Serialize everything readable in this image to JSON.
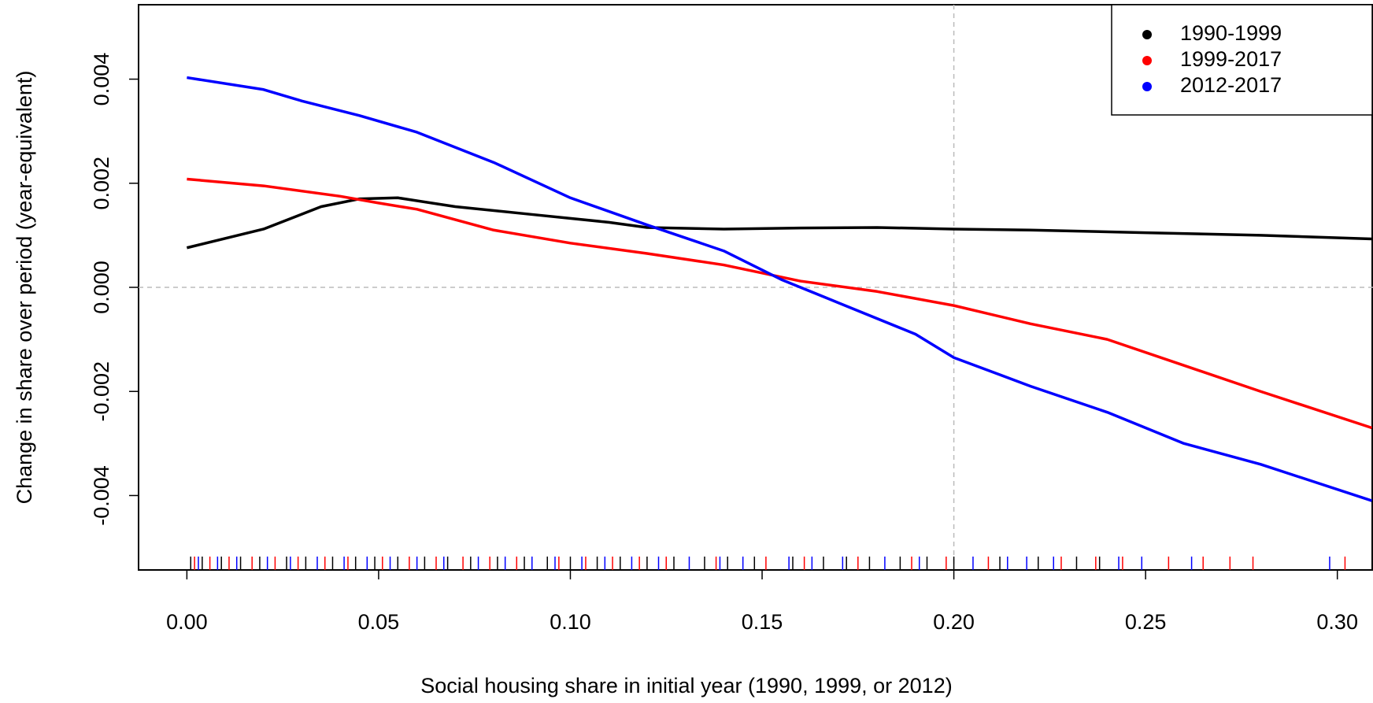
{
  "chart_data": {
    "type": "line",
    "x_label": "Social housing share in initial year (1990, 1999, or 2012)",
    "y_label": "Change in share over period (year-equivalent)",
    "xlim": [
      -0.0126,
      0.3093
    ],
    "ylim": [
      -0.00543,
      0.00543
    ],
    "xticks": [
      {
        "value": 0,
        "label": "0.00"
      },
      {
        "value": 0.05,
        "label": "0.05"
      },
      {
        "value": 0.1,
        "label": "0.10"
      },
      {
        "value": 0.15,
        "label": "0.15"
      },
      {
        "value": 0.2,
        "label": "0.20"
      },
      {
        "value": 0.25,
        "label": "0.25"
      },
      {
        "value": 0.3,
        "label": "0.30"
      }
    ],
    "yticks": [
      {
        "value": -0.004,
        "label": "-0.004"
      },
      {
        "value": -0.002,
        "label": "-0.002"
      },
      {
        "value": 0,
        "label": "0.000"
      },
      {
        "value": 0.002,
        "label": "0.002"
      },
      {
        "value": 0.004,
        "label": "0.004"
      }
    ],
    "vlines": [
      0.2
    ],
    "hlines": [
      0
    ],
    "legend_position": "top-right",
    "series": [
      {
        "name": "1990-1999",
        "color": "#000000",
        "x": [
          0,
          0.02,
          0.035,
          0.045,
          0.055,
          0.07,
          0.09,
          0.11,
          0.12,
          0.14,
          0.16,
          0.18,
          0.2,
          0.22,
          0.25,
          0.28,
          0.309
        ],
        "values": [
          0.00076,
          0.00112,
          0.00155,
          0.0017,
          0.00172,
          0.00155,
          0.0014,
          0.00125,
          0.00115,
          0.00112,
          0.00114,
          0.00115,
          0.00112,
          0.0011,
          0.00105,
          0.001,
          0.00093
        ],
        "rug": [
          0.001,
          0.004,
          0.009,
          0.014,
          0.019,
          0.026,
          0.031,
          0.038,
          0.044,
          0.049,
          0.055,
          0.062,
          0.068,
          0.074,
          0.081,
          0.088,
          0.094,
          0.1,
          0.107,
          0.113,
          0.12,
          0.127,
          0.135,
          0.141,
          0.148,
          0.158,
          0.166,
          0.172,
          0.178,
          0.186,
          0.193,
          0.2,
          0.212,
          0.222,
          0.232,
          0.238
        ]
      },
      {
        "name": "1999-2017",
        "color": "#ff0000",
        "x": [
          0,
          0.02,
          0.04,
          0.05,
          0.06,
          0.08,
          0.1,
          0.12,
          0.14,
          0.16,
          0.18,
          0.2,
          0.22,
          0.24,
          0.26,
          0.28,
          0.309
        ],
        "values": [
          0.00208,
          0.00195,
          0.00175,
          0.00162,
          0.0015,
          0.0011,
          0.00085,
          0.00065,
          0.00043,
          0.00012,
          -8e-05,
          -0.00035,
          -0.0007,
          -0.001,
          -0.0015,
          -0.002,
          -0.0027
        ],
        "rug": [
          0.002,
          0.006,
          0.011,
          0.017,
          0.023,
          0.029,
          0.036,
          0.042,
          0.051,
          0.058,
          0.065,
          0.072,
          0.079,
          0.086,
          0.097,
          0.104,
          0.111,
          0.118,
          0.125,
          0.138,
          0.151,
          0.161,
          0.175,
          0.189,
          0.198,
          0.209,
          0.228,
          0.237,
          0.244,
          0.256,
          0.265,
          0.272,
          0.278,
          0.302
        ]
      },
      {
        "name": "2012-2017",
        "color": "#0000ff",
        "x": [
          0,
          0.02,
          0.03,
          0.045,
          0.06,
          0.08,
          0.1,
          0.12,
          0.14,
          0.155,
          0.17,
          0.19,
          0.2,
          0.22,
          0.24,
          0.26,
          0.28,
          0.309
        ],
        "values": [
          0.00403,
          0.0038,
          0.00358,
          0.0033,
          0.00298,
          0.0024,
          0.00172,
          0.0012,
          0.0007,
          0.00015,
          -0.0003,
          -0.0009,
          -0.00135,
          -0.0019,
          -0.0024,
          -0.003,
          -0.0034,
          -0.0041
        ],
        "rug": [
          0.003,
          0.008,
          0.013,
          0.021,
          0.027,
          0.034,
          0.041,
          0.047,
          0.053,
          0.06,
          0.067,
          0.076,
          0.083,
          0.09,
          0.096,
          0.103,
          0.109,
          0.116,
          0.123,
          0.131,
          0.139,
          0.145,
          0.157,
          0.163,
          0.171,
          0.182,
          0.191,
          0.205,
          0.214,
          0.219,
          0.226,
          0.243,
          0.249,
          0.262,
          0.298
        ]
      }
    ]
  }
}
